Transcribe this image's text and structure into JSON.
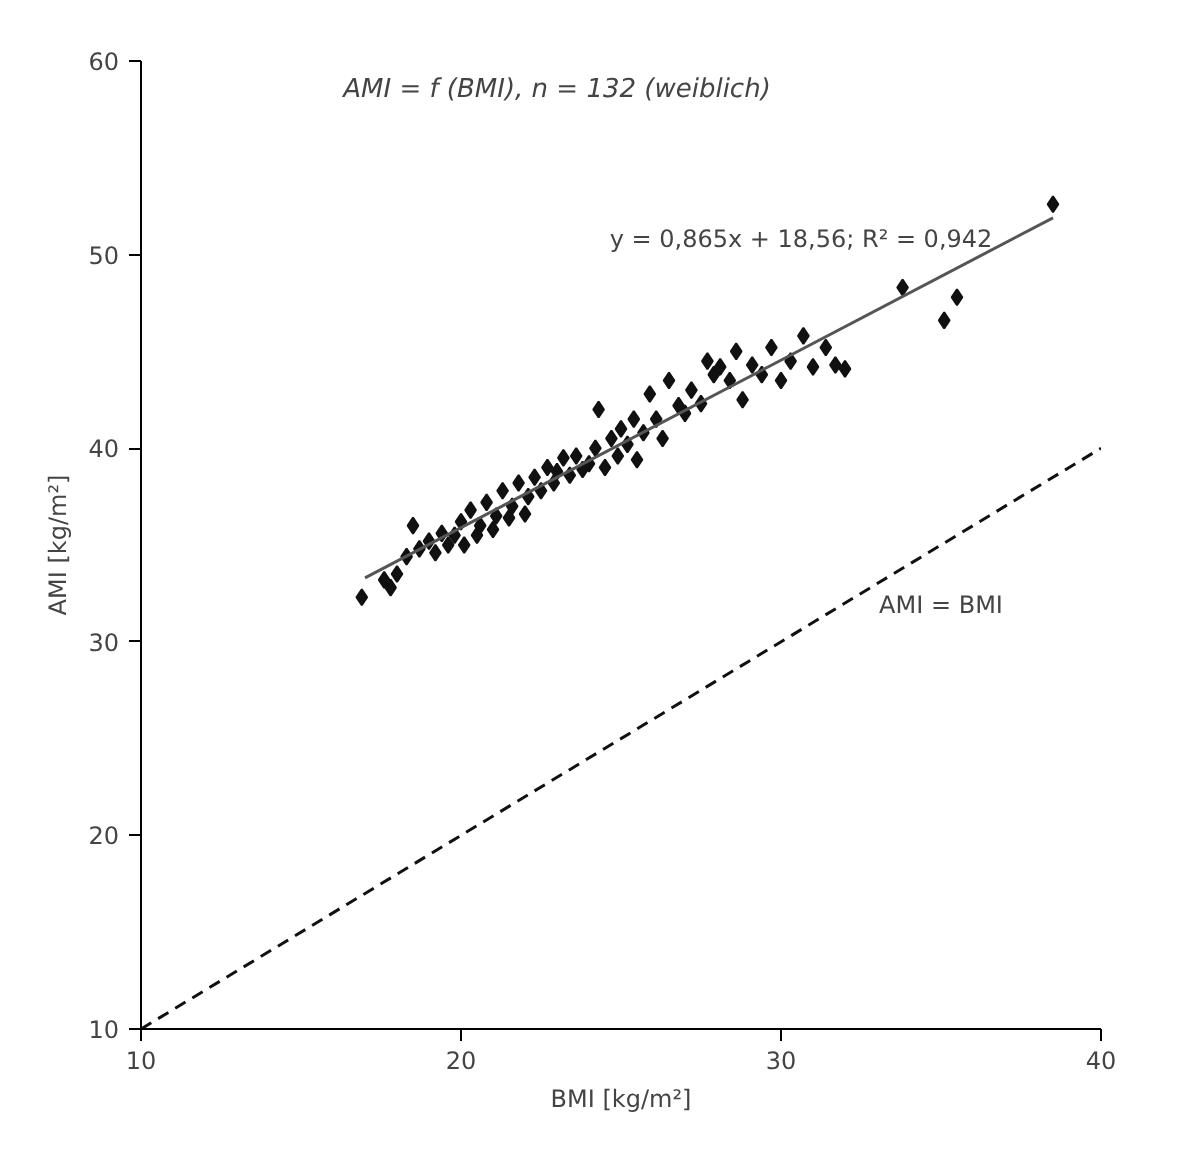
{
  "chart_data": {
    "type": "scatter",
    "title": "AMI = f (BMI), n = 132 (weiblich)",
    "xlabel": "BMI [kg/m²]",
    "ylabel": "AMI [kg/m²]",
    "xlim": [
      10,
      40
    ],
    "ylim": [
      10,
      60
    ],
    "xticks": [
      10,
      20,
      30,
      40
    ],
    "yticks": [
      10,
      20,
      30,
      40,
      50,
      60
    ],
    "grid": false,
    "series": [
      {
        "marker": "diamond",
        "color": "#111111",
        "x": [
          16.9,
          17.6,
          17.8,
          18.0,
          18.3,
          18.5,
          18.7,
          19.0,
          19.2,
          19.4,
          19.6,
          19.8,
          20.0,
          20.1,
          20.3,
          20.5,
          20.6,
          20.8,
          21.0,
          21.1,
          21.3,
          21.5,
          21.6,
          21.8,
          22.0,
          22.1,
          22.3,
          22.5,
          22.7,
          22.9,
          23.0,
          23.2,
          23.4,
          23.6,
          23.8,
          24.0,
          24.2,
          24.3,
          24.5,
          24.7,
          24.9,
          25.0,
          25.2,
          25.4,
          25.5,
          25.7,
          25.9,
          26.1,
          26.3,
          26.5,
          26.8,
          27.0,
          27.2,
          27.5,
          27.7,
          27.9,
          28.1,
          28.4,
          28.6,
          28.8,
          29.1,
          29.4,
          29.7,
          30.0,
          30.3,
          30.7,
          31.0,
          31.4,
          31.7,
          32.0,
          33.8,
          35.1,
          35.5,
          38.5
        ],
        "values": [
          32.3,
          33.2,
          32.8,
          33.5,
          34.4,
          36.0,
          34.8,
          35.2,
          34.6,
          35.6,
          35.0,
          35.5,
          36.2,
          35.0,
          36.8,
          35.5,
          36.0,
          37.2,
          35.8,
          36.5,
          37.8,
          36.4,
          37.0,
          38.2,
          36.6,
          37.5,
          38.5,
          37.8,
          39.0,
          38.2,
          38.8,
          39.5,
          38.6,
          39.6,
          38.9,
          39.2,
          40.0,
          42.0,
          39.0,
          40.5,
          39.6,
          41.0,
          40.2,
          41.5,
          39.4,
          40.8,
          42.8,
          41.5,
          40.5,
          43.5,
          42.2,
          41.8,
          43.0,
          42.3,
          44.5,
          43.8,
          44.2,
          43.5,
          45.0,
          42.5,
          44.3,
          43.8,
          45.2,
          43.5,
          44.5,
          45.8,
          44.2,
          45.2,
          44.3,
          44.1,
          48.3,
          46.6,
          47.8,
          52.6
        ]
      },
      {
        "type": "line",
        "marker": "none",
        "color": "#555555",
        "line_style": "solid",
        "x": [
          17,
          38.5
        ],
        "values": [
          33.3,
          51.9
        ]
      },
      {
        "type": "line",
        "marker": "none",
        "color": "#111111",
        "line_style": "dashed",
        "x": [
          10,
          40
        ],
        "values": [
          10,
          40
        ]
      }
    ],
    "annotations": [
      "y = 0,865x + 18,56; R² = 0,942",
      "AMI = BMI"
    ]
  }
}
